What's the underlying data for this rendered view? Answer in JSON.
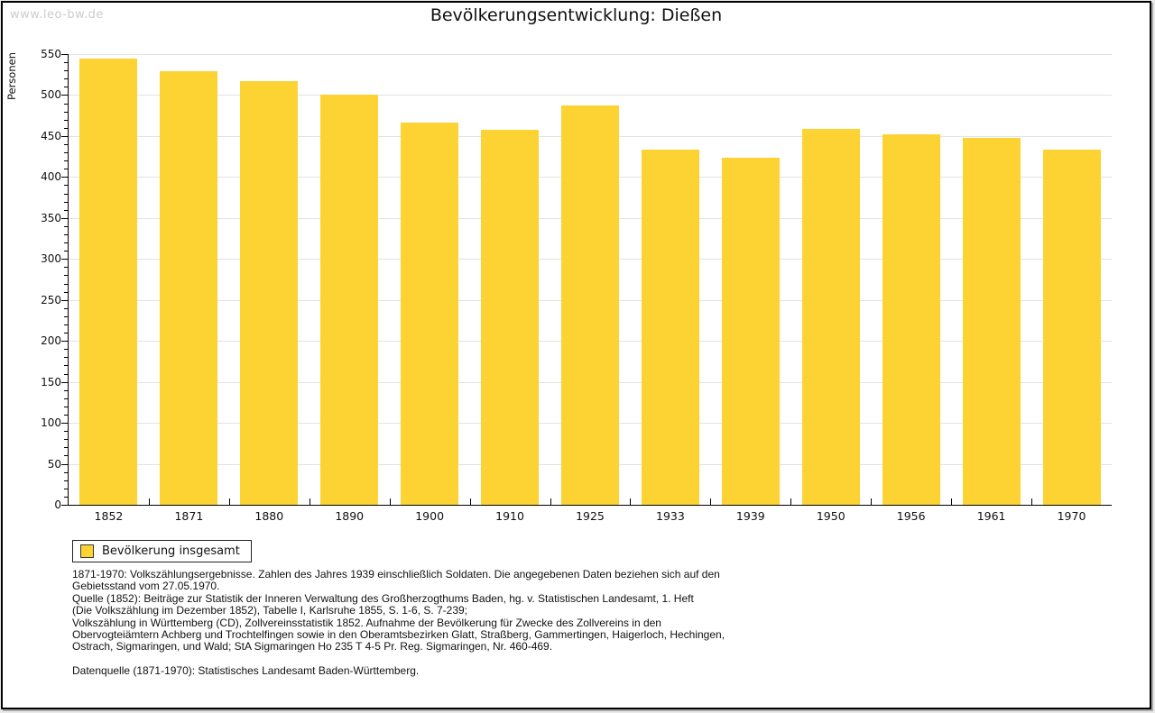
{
  "watermark": "www.leo-bw.de",
  "title": "Bevölkerungsentwicklung: Dießen",
  "chart_data": {
    "type": "bar",
    "title": "Bevölkerungsentwicklung: Dießen",
    "categories": [
      "1852",
      "1871",
      "1880",
      "1890",
      "1900",
      "1910",
      "1925",
      "1933",
      "1939",
      "1950",
      "1956",
      "1961",
      "1970"
    ],
    "values": [
      545,
      529,
      517,
      500,
      466,
      458,
      487,
      433,
      424,
      459,
      452,
      448,
      433
    ],
    "series_name": "Bevölkerung insgesamt",
    "xlabel": "",
    "ylabel": "Personen",
    "ylim": [
      0,
      550
    ],
    "ytick_step": 50,
    "yminor_step": 10,
    "grid": true,
    "legend_position": "bottom-left"
  },
  "legend": {
    "label": "Bevölkerung insgesamt"
  },
  "footer": {
    "lines": [
      "1871-1970: Volkszählungsergebnisse. Zahlen des Jahres 1939 einschließlich Soldaten. Die angegebenen Daten beziehen sich auf den",
      "Gebietsstand vom 27.05.1970.",
      "Quelle (1852): Beiträge zur Statistik der Inneren Verwaltung des Großherzogthums Baden, hg. v. Statistischen Landesamt, 1. Heft",
      "(Die Volkszählung im Dezember 1852), Tabelle I, Karlsruhe 1855, S. 1-6, S. 7-239;",
      "Volkszählung in Württemberg (CD), Zollvereinsstatistik 1852. Aufnahme der Bevölkerung für Zwecke des Zollvereins in den",
      "Obervogteiämtern Achberg und Trochtelfingen sowie in den Oberamtsbezirken Glatt, Straßberg, Gammertingen, Haigerloch, Hechingen,",
      "Ostrach, Sigmaringen, und Wald; StA Sigmaringen Ho 235 T 4-5 Pr. Reg. Sigmaringen, Nr. 460-469."
    ],
    "source_line": "Datenquelle (1871-1970): Statistisches Landesamt Baden-Württemberg."
  },
  "colors": {
    "bar": "#fcd332",
    "grid": "#e2e2e2",
    "axis": "#000000",
    "watermark": "#cccccc",
    "text": "#111111"
  }
}
